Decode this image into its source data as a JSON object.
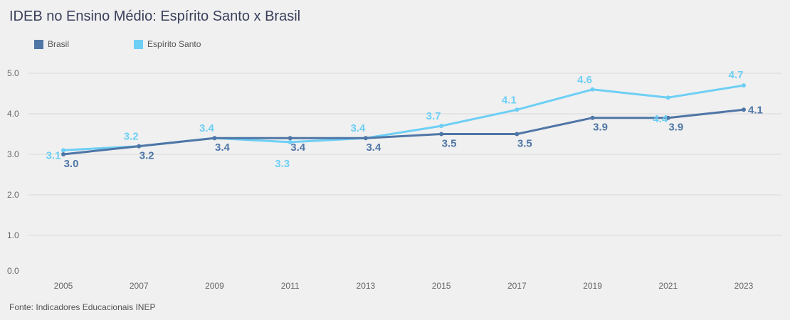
{
  "chart_data": {
    "type": "line",
    "title": "IDEB no Ensino Médio: Espírito Santo x Brasil",
    "source": "Fonte: Indicadores Educacionais INEP",
    "categories": [
      "2005",
      "2007",
      "2009",
      "2011",
      "2013",
      "2015",
      "2017",
      "2019",
      "2021",
      "2023"
    ],
    "ylim": [
      0,
      5
    ],
    "yticks": [
      "0.0",
      "1.0",
      "2.0",
      "3.0",
      "4.0",
      "5.0"
    ],
    "grid": true,
    "legend_position": "top-left",
    "series": [
      {
        "name": "Brasil",
        "color": "#4f76a6",
        "values": [
          3.0,
          3.2,
          3.4,
          3.4,
          3.4,
          3.5,
          3.5,
          3.9,
          3.9,
          4.1
        ],
        "labels": [
          "3.0",
          "3.2",
          "3.4",
          "3.4",
          "3.4",
          "3.5",
          "3.5",
          "3.9",
          "3.9",
          "4.1"
        ]
      },
      {
        "name": "Espírito Santo",
        "color": "#6ecff5",
        "values": [
          3.1,
          3.2,
          3.4,
          3.3,
          3.4,
          3.7,
          4.1,
          4.6,
          4.4,
          4.7
        ],
        "labels": [
          "3.1",
          "3.2",
          "3.4",
          "3.3",
          "3.4",
          "3.7",
          "4.1",
          "4.6",
          "4.4",
          "4.7"
        ]
      }
    ]
  }
}
